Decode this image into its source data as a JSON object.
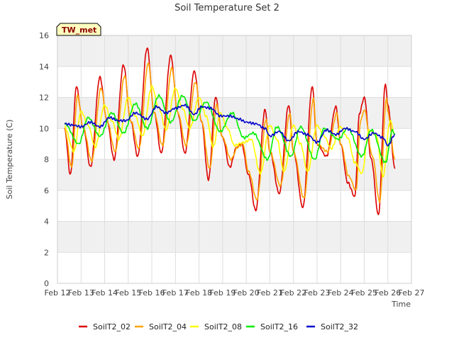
{
  "chart_data": {
    "type": "line",
    "title": "Soil Temperature Set 2",
    "xlabel": "Time",
    "ylabel": "Soil Temperature (C)",
    "badge": "TW_met",
    "xlim": [
      12,
      27
    ],
    "ylim": [
      0,
      16
    ],
    "x_ticks": [
      {
        "value": 12,
        "label": "Feb 12"
      },
      {
        "value": 13,
        "label": "Feb 13"
      },
      {
        "value": 14,
        "label": "Feb 14"
      },
      {
        "value": 15,
        "label": "Feb 15"
      },
      {
        "value": 16,
        "label": "Feb 16"
      },
      {
        "value": 17,
        "label": "Feb 17"
      },
      {
        "value": 18,
        "label": "Feb 18"
      },
      {
        "value": 19,
        "label": "Feb 19"
      },
      {
        "value": 20,
        "label": "Feb 20"
      },
      {
        "value": 21,
        "label": "Feb 21"
      },
      {
        "value": 22,
        "label": "Feb 22"
      },
      {
        "value": 23,
        "label": "Feb 23"
      },
      {
        "value": 24,
        "label": "Feb 24"
      },
      {
        "value": 25,
        "label": "Feb 25"
      },
      {
        "value": 26,
        "label": "Feb 26"
      },
      {
        "value": 27,
        "label": "Feb 27"
      }
    ],
    "y_ticks": [
      0,
      2,
      4,
      6,
      8,
      10,
      12,
      14,
      16
    ],
    "grid": true,
    "legend_position": "bottom",
    "series": [
      {
        "name": "SoilT2_02",
        "color": "#dd0000",
        "x": [
          12.3,
          12.55,
          12.8,
          13.1,
          13.4,
          13.8,
          14.1,
          14.4,
          14.8,
          15.1,
          15.4,
          15.8,
          16.1,
          16.4,
          16.8,
          17.1,
          17.4,
          17.8,
          18.1,
          18.4,
          18.7,
          19.0,
          19.3,
          19.6,
          19.8,
          20.1,
          20.4,
          20.8,
          21.0,
          21.4,
          21.8,
          22.0,
          22.4,
          22.8,
          23.0,
          23.4,
          23.8,
          24.0,
          24.3,
          24.6,
          24.8,
          25.0,
          25.3,
          25.6,
          25.9,
          26.0,
          26.3
        ],
        "y": [
          10.0,
          7.0,
          12.7,
          10.0,
          7.5,
          13.3,
          10.5,
          8.0,
          14.1,
          10.5,
          8.2,
          15.2,
          11.0,
          8.4,
          14.7,
          11.0,
          8.4,
          13.7,
          10.5,
          6.7,
          12.0,
          9.4,
          7.5,
          8.8,
          9.0,
          7.0,
          4.7,
          11.2,
          8.5,
          5.8,
          11.5,
          8.5,
          4.9,
          12.7,
          9.0,
          8.2,
          11.4,
          9.0,
          6.5,
          5.6,
          11.0,
          12.0,
          8.0,
          4.4,
          12.9,
          11.5,
          7.4
        ]
      },
      {
        "name": "SoilT2_04",
        "color": "#ffa500",
        "x": [
          12.3,
          12.6,
          12.85,
          13.1,
          13.45,
          13.85,
          14.1,
          14.45,
          14.85,
          15.1,
          15.45,
          15.85,
          16.1,
          16.45,
          16.85,
          17.1,
          17.45,
          17.85,
          18.1,
          18.45,
          18.75,
          19.0,
          19.35,
          19.65,
          19.85,
          20.1,
          20.45,
          20.85,
          21.0,
          21.45,
          21.85,
          22.0,
          22.45,
          22.85,
          23.0,
          23.45,
          23.85,
          24.0,
          24.35,
          24.65,
          24.85,
          25.0,
          25.35,
          25.65,
          25.95,
          26.0,
          26.3
        ],
        "y": [
          10.0,
          7.5,
          12.1,
          10.0,
          7.9,
          12.6,
          10.5,
          8.5,
          13.4,
          10.5,
          8.7,
          14.2,
          11.0,
          8.9,
          13.9,
          11.0,
          8.9,
          13.0,
          10.5,
          7.4,
          11.5,
          9.4,
          8.0,
          8.8,
          9.0,
          7.2,
          5.4,
          10.6,
          8.5,
          6.3,
          11.0,
          8.5,
          5.5,
          11.9,
          9.0,
          8.5,
          11.0,
          9.0,
          6.9,
          6.0,
          10.5,
          11.2,
          8.2,
          5.3,
          12.0,
          11.0,
          8.0
        ]
      },
      {
        "name": "SoilT2_08",
        "color": "#ffff00",
        "x": [
          12.3,
          12.7,
          13.0,
          13.3,
          13.6,
          14.0,
          14.3,
          14.6,
          15.0,
          15.3,
          15.6,
          16.0,
          16.3,
          16.6,
          17.0,
          17.3,
          17.6,
          18.0,
          18.3,
          18.6,
          18.9,
          19.2,
          19.5,
          19.9,
          20.2,
          20.6,
          21.0,
          21.3,
          21.6,
          22.0,
          22.3,
          22.6,
          23.0,
          23.3,
          23.6,
          24.0,
          24.3,
          24.6,
          24.9,
          25.2,
          25.5,
          25.8,
          26.1,
          26.3
        ],
        "y": [
          10.1,
          8.5,
          11.1,
          10.2,
          8.8,
          11.5,
          10.5,
          9.3,
          12.0,
          10.8,
          9.5,
          12.7,
          11.3,
          9.9,
          12.6,
          11.3,
          10.0,
          12.0,
          10.8,
          8.8,
          11.0,
          10.0,
          8.9,
          9.1,
          9.3,
          7.1,
          10.2,
          9.3,
          7.2,
          10.2,
          9.0,
          7.2,
          10.2,
          9.5,
          8.7,
          10.1,
          9.4,
          7.8,
          7.1,
          9.9,
          9.6,
          6.9,
          10.5,
          9.6
        ]
      },
      {
        "name": "SoilT2_16",
        "color": "#00ee00",
        "x": [
          12.3,
          12.9,
          13.3,
          13.8,
          14.3,
          14.8,
          15.3,
          15.8,
          16.3,
          16.8,
          17.3,
          17.8,
          18.3,
          18.9,
          19.4,
          19.9,
          20.3,
          20.9,
          21.3,
          21.9,
          22.3,
          22.9,
          23.3,
          23.9,
          24.3,
          24.9,
          25.3,
          25.9,
          26.2,
          26.3
        ],
        "y": [
          10.3,
          9.0,
          10.7,
          9.5,
          11.0,
          9.7,
          11.6,
          10.0,
          12.1,
          10.4,
          12.1,
          10.5,
          11.7,
          9.8,
          11.0,
          9.4,
          9.7,
          8.0,
          10.1,
          8.2,
          10.1,
          8.0,
          10.0,
          9.3,
          10.0,
          8.2,
          9.9,
          7.8,
          9.9,
          9.6
        ]
      },
      {
        "name": "SoilT2_32",
        "color": "#0000cc",
        "x": [
          12.3,
          12.7,
          13.0,
          13.4,
          13.8,
          14.2,
          14.6,
          14.9,
          15.3,
          15.8,
          16.2,
          16.6,
          17.0,
          17.4,
          17.8,
          18.1,
          18.5,
          18.9,
          19.3,
          19.7,
          20.0,
          20.4,
          20.8,
          21.0,
          21.4,
          21.8,
          22.2,
          22.6,
          23.0,
          23.4,
          23.8,
          24.2,
          24.6,
          25.0,
          25.4,
          25.8,
          26.0,
          26.3
        ],
        "y": [
          10.3,
          10.2,
          10.1,
          10.4,
          10.1,
          10.7,
          10.5,
          10.5,
          11.0,
          10.6,
          11.4,
          11.0,
          11.3,
          11.5,
          10.9,
          11.4,
          11.3,
          10.8,
          10.8,
          10.6,
          10.4,
          10.3,
          10.0,
          9.5,
          9.8,
          9.2,
          9.8,
          9.6,
          9.1,
          9.9,
          9.6,
          10.0,
          9.8,
          9.3,
          9.7,
          9.4,
          8.9,
          9.6
        ]
      }
    ]
  }
}
